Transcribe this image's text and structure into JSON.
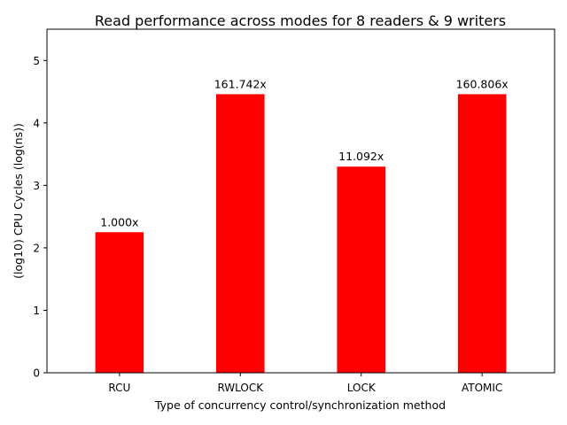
{
  "chart_data": {
    "type": "bar",
    "title": "Read performance across modes for 8 readers & 9 writers",
    "xlabel": "Type of concurrency control/synchronization method",
    "ylabel": "(log10) CPU Cycles (log(ns))",
    "categories": [
      "RCU",
      "RWLOCK",
      "LOCK",
      "ATOMIC"
    ],
    "values": [
      2.25,
      4.46,
      3.3,
      4.46
    ],
    "data_labels": [
      "1.000x",
      "161.742x",
      "11.092x",
      "160.806x"
    ],
    "ylim": [
      0,
      5.5
    ],
    "yticks": [
      "0",
      "1",
      "2",
      "3",
      "4",
      "5"
    ],
    "grid": false,
    "legend": "none",
    "bar_color": "#ff0000"
  }
}
